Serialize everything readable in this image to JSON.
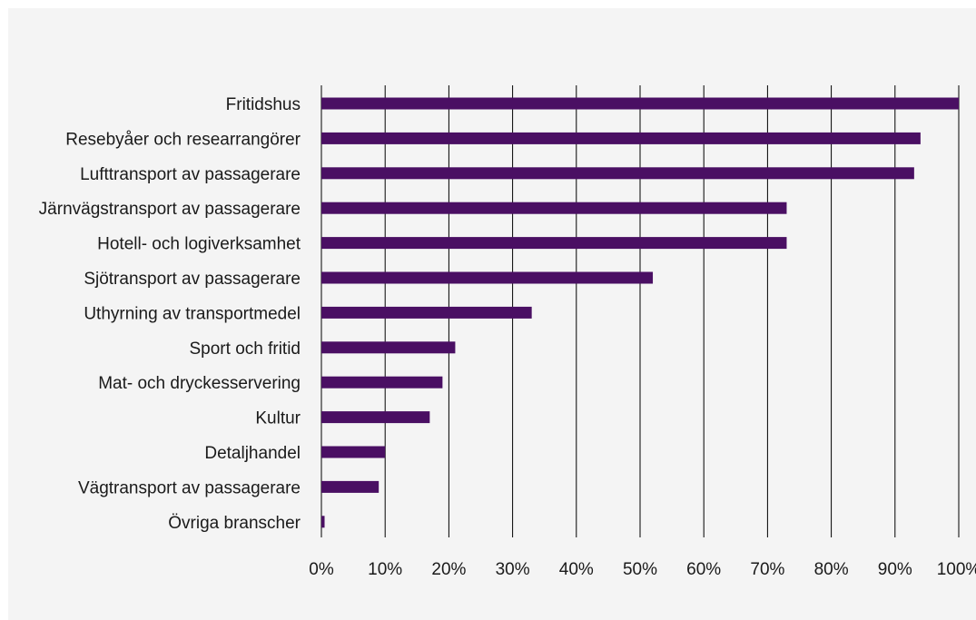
{
  "chart_data": {
    "type": "bar",
    "orientation": "horizontal",
    "categories": [
      "Fritidshus",
      "Resebyåer och researrangörer",
      "Lufttransport av passagerare",
      "Järnvägstransport av passagerare",
      "Hotell- och logiverksamhet",
      "Sjötransport av passagerare",
      "Uthyrning av transportmedel",
      "Sport och fritid",
      "Mat- och dryckesservering",
      "Kultur",
      "Detaljhandel",
      "Vägtransport av passagerare",
      "Övriga branscher"
    ],
    "values": [
      100,
      94,
      93,
      73,
      73,
      52,
      33,
      21,
      19,
      17,
      10,
      9,
      0.5
    ],
    "xlim": [
      0,
      100
    ],
    "x_ticks": [
      "0%",
      "10%",
      "20%",
      "30%",
      "40%",
      "50%",
      "60%",
      "70%",
      "80%",
      "90%",
      "100%"
    ],
    "grid": "vertical",
    "bar_color": "#4a0f63",
    "background_color": "#f4f4f4",
    "title": "",
    "xlabel": "",
    "ylabel": ""
  }
}
